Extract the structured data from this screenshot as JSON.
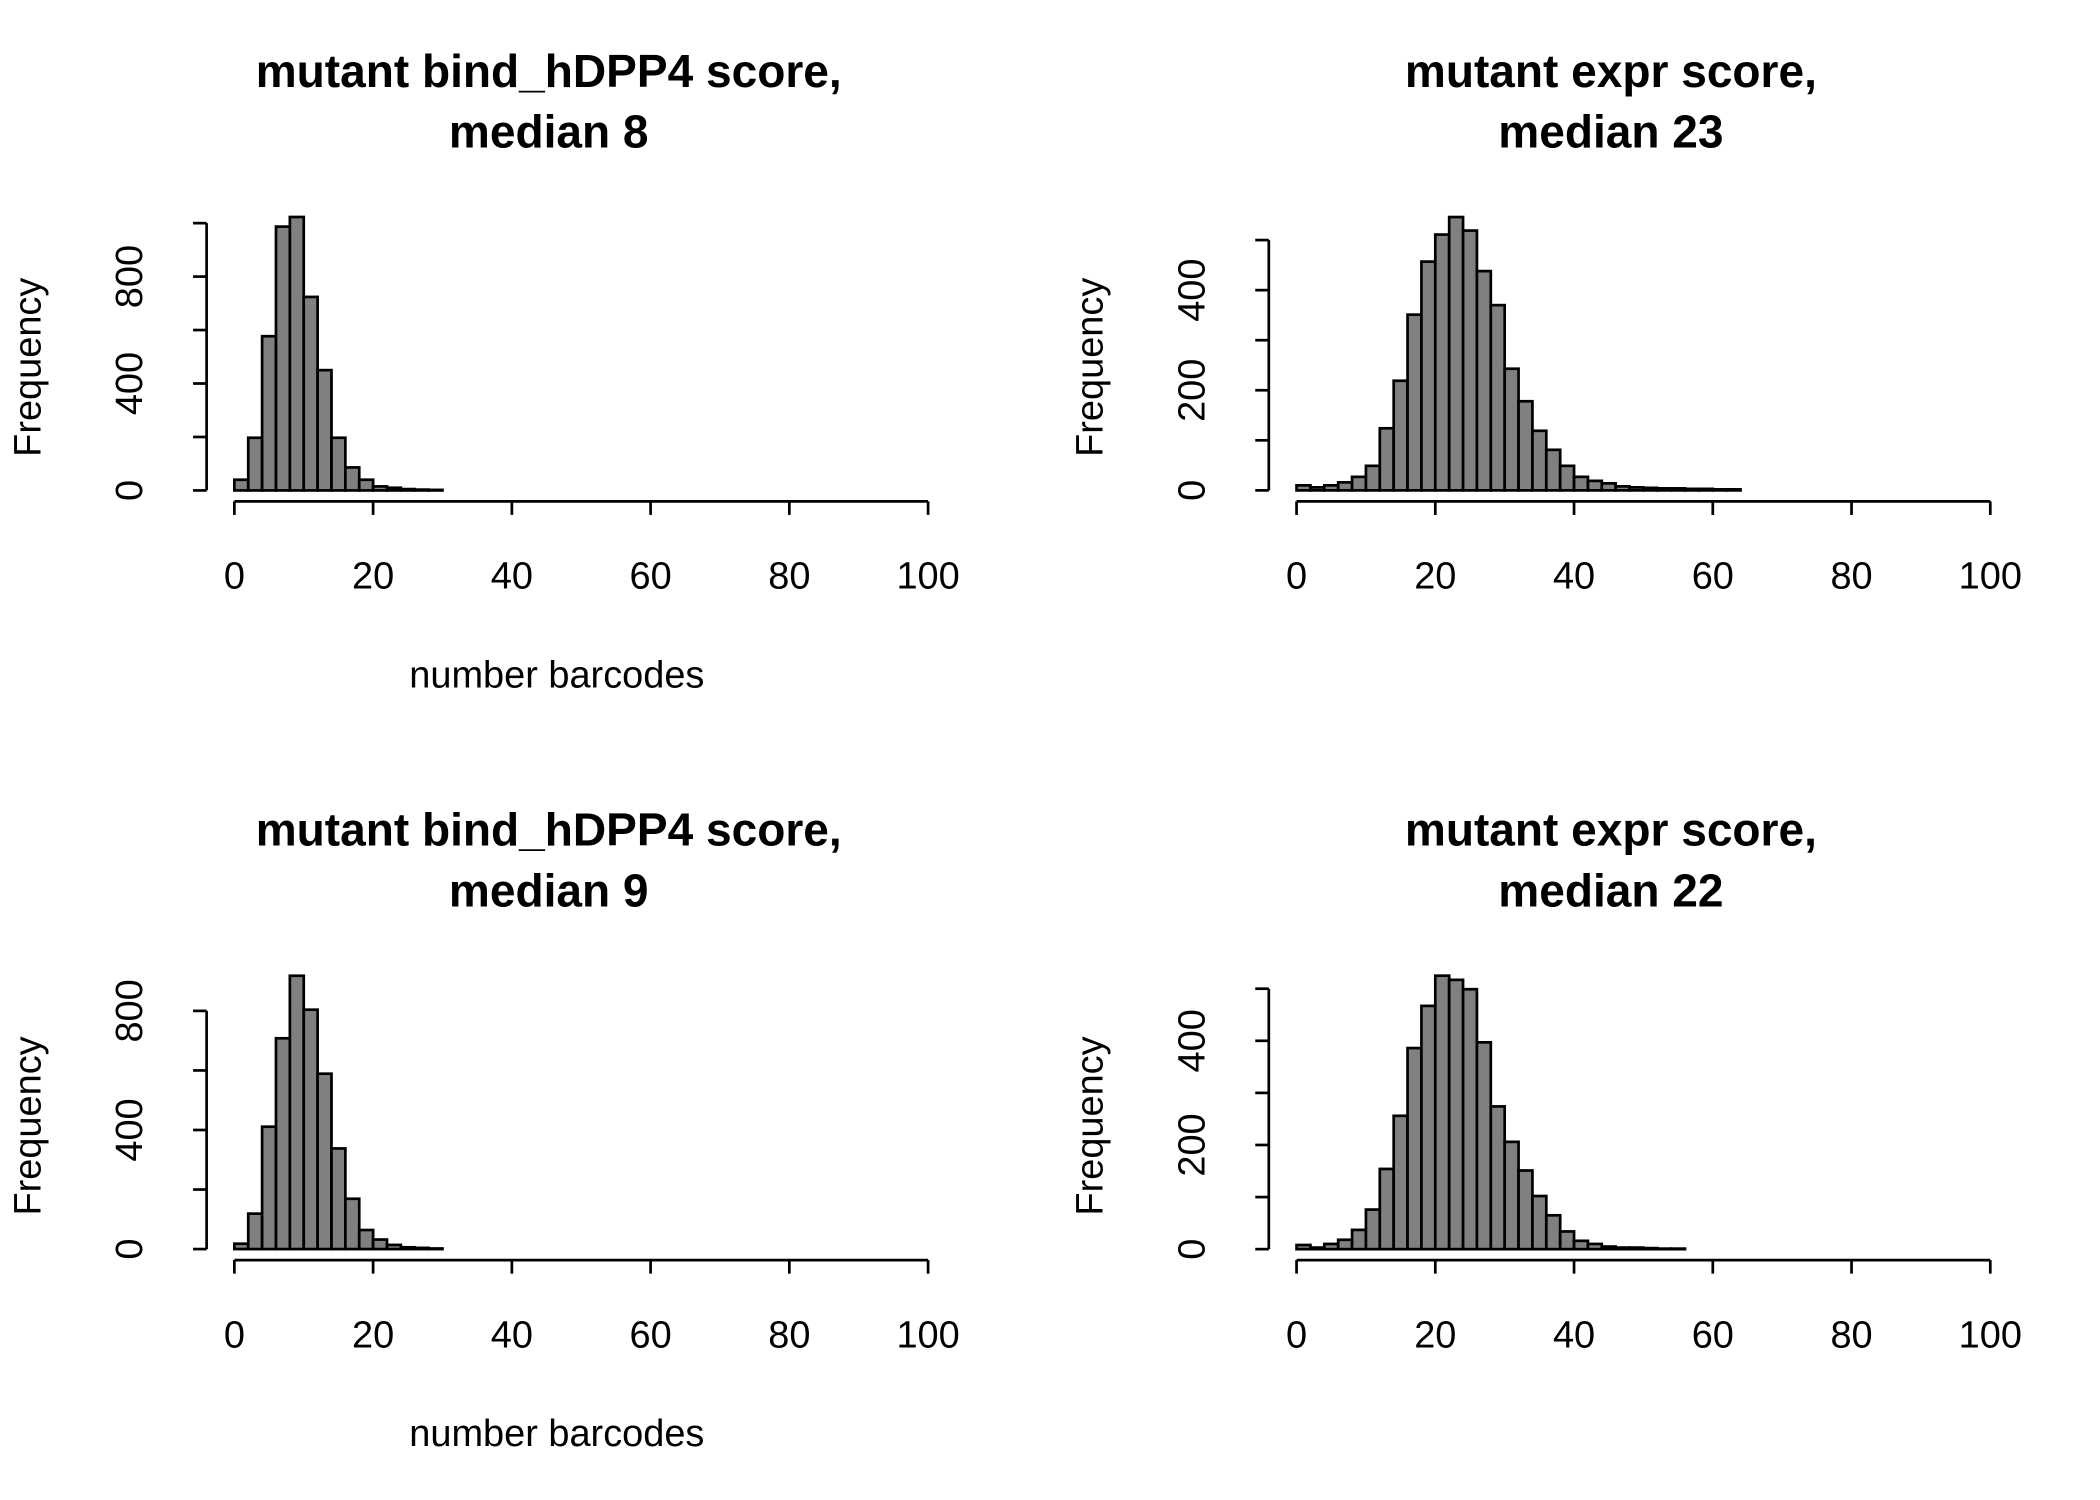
{
  "chart_data": [
    {
      "type": "histogram",
      "title": [
        "mutant bind_hDPP4 score,",
        "median 8"
      ],
      "xlabel": "number barcodes",
      "ylabel": "Frequency",
      "color": "#808080",
      "bins": [
        0,
        2,
        4,
        6,
        8,
        10,
        12,
        14,
        16,
        18,
        20,
        22,
        24,
        26,
        28,
        30
      ],
      "values": [
        40,
        197,
        577,
        987,
        1023,
        724,
        450,
        197,
        86,
        40,
        15,
        10,
        5,
        3,
        2
      ],
      "xlim": [
        -4,
        104
      ],
      "xticks": [
        0,
        20,
        40,
        60,
        80,
        100
      ],
      "ylim": [
        -41,
        1064
      ],
      "yticks": [
        0,
        200,
        400,
        600,
        800,
        1000
      ]
    },
    {
      "type": "histogram",
      "title": [
        "mutant expr score,",
        "median 23"
      ],
      "ylabel": "Frequency",
      "color": "#808080",
      "bins": [
        0,
        2,
        4,
        6,
        8,
        10,
        12,
        14,
        16,
        18,
        20,
        22,
        24,
        26,
        28,
        30,
        32,
        34,
        36,
        38,
        40,
        42,
        44,
        46,
        48,
        50,
        52,
        54,
        56,
        58,
        60,
        62,
        64
      ],
      "values": [
        10,
        6,
        10,
        16,
        27,
        49,
        124,
        219,
        351,
        457,
        511,
        546,
        519,
        438,
        370,
        243,
        178,
        119,
        81,
        49,
        27,
        19,
        14,
        8,
        6,
        5,
        4,
        4,
        3,
        3,
        2,
        2
      ],
      "xlim": [
        -4,
        104
      ],
      "xticks": [
        0,
        20,
        40,
        60,
        80,
        100
      ],
      "ylim": [
        -22,
        568
      ],
      "yticks": [
        0,
        100,
        200,
        300,
        400,
        500
      ]
    },
    {
      "type": "histogram",
      "title": [
        "mutant bind_hDPP4 score,",
        "median 9"
      ],
      "xlabel": "number barcodes",
      "ylabel": "Frequency",
      "color": "#808080",
      "bins": [
        0,
        2,
        4,
        6,
        8,
        10,
        12,
        14,
        16,
        18,
        20,
        22,
        24,
        26,
        28,
        30
      ],
      "values": [
        18,
        119,
        411,
        708,
        918,
        804,
        589,
        338,
        169,
        64,
        32,
        14,
        6,
        4,
        2
      ],
      "xlim": [
        -4,
        104
      ],
      "xticks": [
        0,
        20,
        40,
        60,
        80,
        100
      ],
      "ylim": [
        -37,
        955
      ],
      "yticks": [
        0,
        200,
        400,
        600,
        800
      ]
    },
    {
      "type": "histogram",
      "title": [
        "mutant expr score,",
        "median 22"
      ],
      "ylabel": "Frequency",
      "color": "#808080",
      "bins": [
        0,
        2,
        4,
        6,
        8,
        10,
        12,
        14,
        16,
        18,
        20,
        22,
        24,
        26,
        28,
        30,
        32,
        34,
        36,
        38,
        40,
        42,
        44,
        46,
        48,
        50,
        52,
        54,
        56
      ],
      "values": [
        8,
        3,
        10,
        18,
        37,
        76,
        154,
        256,
        386,
        467,
        525,
        517,
        499,
        397,
        274,
        206,
        151,
        102,
        65,
        34,
        16,
        10,
        5,
        3,
        3,
        2,
        1,
        1
      ],
      "xlim": [
        -4,
        104
      ],
      "xticks": [
        0,
        20,
        40,
        60,
        80,
        100
      ],
      "ylim": [
        -21,
        546
      ],
      "yticks": [
        0,
        100,
        200,
        300,
        400,
        500
      ]
    }
  ]
}
